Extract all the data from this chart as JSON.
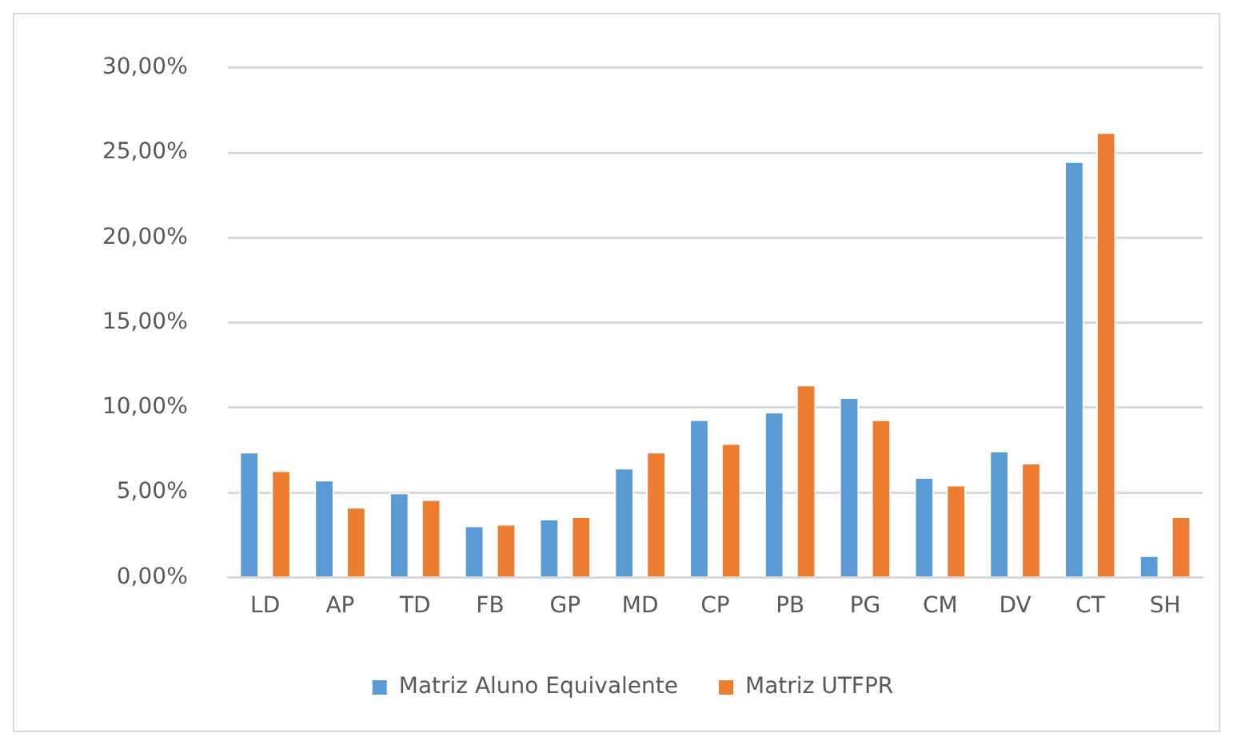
{
  "chart_data": {
    "type": "bar",
    "categories": [
      "LD",
      "AP",
      "TD",
      "FB",
      "GP",
      "MD",
      "CP",
      "PB",
      "PG",
      "CM",
      "DV",
      "CT",
      "SH"
    ],
    "series": [
      {
        "name": "Matriz Aluno Equivalente",
        "color": "#5b9bd5",
        "values": [
          7.4,
          5.75,
          5.0,
          3.05,
          3.45,
          6.45,
          9.3,
          9.75,
          10.6,
          5.9,
          7.45,
          24.5,
          1.3
        ]
      },
      {
        "name": "Matriz UTFPR",
        "color": "#ed7d31",
        "values": [
          6.3,
          4.15,
          4.6,
          3.15,
          3.6,
          7.4,
          7.9,
          11.35,
          9.3,
          5.45,
          6.75,
          26.2,
          3.6
        ]
      }
    ],
    "ylim": [
      0,
      30
    ],
    "yticks": [
      {
        "value": 0,
        "label": "0,00%"
      },
      {
        "value": 5,
        "label": "5,00%"
      },
      {
        "value": 10,
        "label": "10,00%"
      },
      {
        "value": 15,
        "label": "15,00%"
      },
      {
        "value": 20,
        "label": "20,00%"
      },
      {
        "value": 25,
        "label": "25,00%"
      },
      {
        "value": 30,
        "label": "30,00%"
      }
    ],
    "grid": "y",
    "legend": "bottom"
  }
}
